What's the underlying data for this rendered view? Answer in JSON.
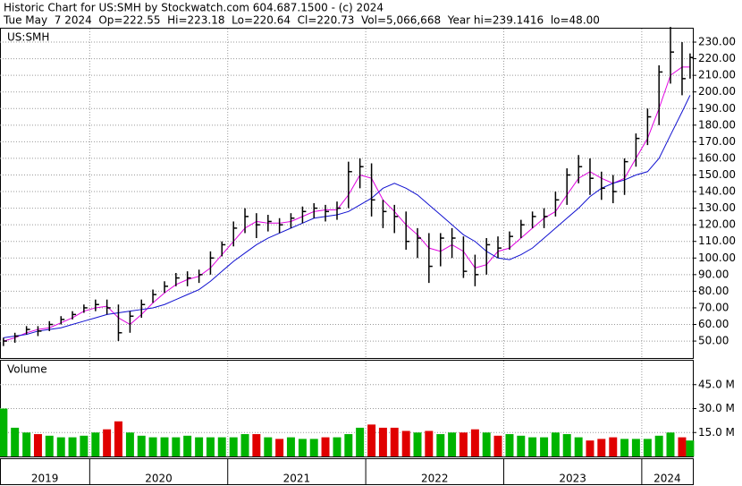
{
  "chart_data": {
    "type": "ohlc",
    "title": "Historic Chart for US:SMH by Stockwatch.com 604.687.1500 - (c) 2024",
    "subtitle": "Tue May  7 2024  Op=222.55  Hi=223.18  Lo=220.64  Cl=220.73  Vol=5,066,668  Year hi=239.1416  lo=48.00",
    "symbol": "US:SMH",
    "volume_label": "Volume",
    "grid": true,
    "bar_color": "#000000",
    "up_color": "#00b400",
    "down_color": "#e00000",
    "xlim": [
      2019.35,
      2024.37
    ],
    "xticks": [
      2019,
      2020,
      2021,
      2022,
      2023,
      2024
    ],
    "ylim": [
      39.8,
      238.1
    ],
    "yticks": [
      {
        "value": 50,
        "label": "50.00"
      },
      {
        "value": 60,
        "label": "60.00"
      },
      {
        "value": 70,
        "label": "70.00"
      },
      {
        "value": 80,
        "label": "80.00"
      },
      {
        "value": 90,
        "label": "90.00"
      },
      {
        "value": 100,
        "label": "100.00"
      },
      {
        "value": 110,
        "label": "110.00"
      },
      {
        "value": 120,
        "label": "120.00"
      },
      {
        "value": 130,
        "label": "130.00"
      },
      {
        "value": 140,
        "label": "140.00"
      },
      {
        "value": 150,
        "label": "150.00"
      },
      {
        "value": 160,
        "label": "160.00"
      },
      {
        "value": 170,
        "label": "170.00"
      },
      {
        "value": 180,
        "label": "180.00"
      },
      {
        "value": 190,
        "label": "190.00"
      },
      {
        "value": 200,
        "label": "200.00"
      },
      {
        "value": 210,
        "label": "210.00"
      },
      {
        "value": 220,
        "label": "220.00"
      },
      {
        "value": 230,
        "label": "230.00"
      }
    ],
    "x": [
      2019.375,
      2019.458,
      2019.542,
      2019.625,
      2019.708,
      2019.792,
      2019.875,
      2019.958,
      2020.042,
      2020.125,
      2020.208,
      2020.292,
      2020.375,
      2020.458,
      2020.542,
      2020.625,
      2020.708,
      2020.792,
      2020.875,
      2020.958,
      2021.042,
      2021.125,
      2021.208,
      2021.292,
      2021.375,
      2021.458,
      2021.542,
      2021.625,
      2021.708,
      2021.792,
      2021.875,
      2021.958,
      2022.042,
      2022.125,
      2022.208,
      2022.292,
      2022.375,
      2022.458,
      2022.542,
      2022.625,
      2022.708,
      2022.792,
      2022.875,
      2022.958,
      2023.042,
      2023.125,
      2023.208,
      2023.292,
      2023.375,
      2023.458,
      2023.542,
      2023.625,
      2023.708,
      2023.792,
      2023.875,
      2023.958,
      2024.042,
      2024.125,
      2024.208,
      2024.292,
      2024.35
    ],
    "high": [
      52,
      55,
      59,
      59,
      62,
      65,
      68,
      72,
      75,
      75,
      72,
      68,
      75,
      81,
      86,
      91,
      92,
      93,
      104,
      110,
      122,
      130,
      127,
      126,
      124,
      127,
      131,
      133,
      132,
      134,
      158,
      160,
      157,
      135,
      132,
      128,
      118,
      115,
      115,
      118,
      113,
      102,
      112,
      113,
      116,
      123,
      128,
      130,
      140,
      154,
      162,
      160,
      152,
      150,
      160,
      175,
      190,
      216,
      239.14,
      230,
      223.18
    ],
    "low": [
      47,
      49,
      54,
      53,
      56,
      60,
      63,
      67,
      68,
      66,
      50,
      55,
      64,
      73,
      79,
      83,
      83,
      85,
      90,
      101,
      107,
      115,
      112,
      116,
      115,
      118,
      121,
      124,
      122,
      123,
      130,
      142,
      125,
      118,
      115,
      105,
      100,
      85,
      95,
      100,
      88,
      83,
      90,
      100,
      105,
      112,
      118,
      118,
      125,
      132,
      145,
      138,
      135,
      133,
      138,
      155,
      168,
      180,
      205,
      198,
      208
    ],
    "close": [
      50,
      53,
      57,
      56,
      60,
      63,
      66,
      70,
      72,
      70,
      55,
      65,
      72,
      78,
      83,
      88,
      88,
      90,
      100,
      108,
      118,
      125,
      120,
      122,
      120,
      124,
      128,
      130,
      128,
      130,
      152,
      155,
      135,
      128,
      125,
      110,
      112,
      95,
      112,
      112,
      92,
      90,
      108,
      106,
      113,
      120,
      125,
      125,
      135,
      150,
      155,
      148,
      142,
      140,
      158,
      172,
      185,
      212,
      224,
      208,
      220.73
    ],
    "ma_fast": {
      "color": "#e000e0",
      "values": [
        50,
        52,
        55,
        57,
        58,
        61,
        64,
        68,
        70,
        71,
        64,
        60,
        66,
        73,
        79,
        84,
        87,
        89,
        94,
        102,
        110,
        118,
        122,
        121,
        121,
        122,
        125,
        128,
        129,
        129,
        138,
        150,
        148,
        135,
        128,
        120,
        114,
        106,
        104,
        108,
        104,
        94,
        96,
        104,
        106,
        112,
        118,
        124,
        128,
        138,
        148,
        152,
        148,
        145,
        148,
        160,
        172,
        190,
        210,
        215,
        215
      ]
    },
    "ma_slow": {
      "color": "#1010d0",
      "values": [
        52,
        53,
        54,
        56,
        57,
        58,
        60,
        62,
        64,
        66,
        67,
        68,
        69,
        70,
        72,
        75,
        78,
        81,
        86,
        92,
        98,
        103,
        108,
        112,
        115,
        118,
        121,
        124,
        125,
        126,
        128,
        132,
        136,
        142,
        145,
        142,
        138,
        132,
        126,
        120,
        114,
        110,
        104,
        100,
        99,
        102,
        106,
        112,
        118,
        124,
        130,
        137,
        142,
        145,
        147,
        150,
        152,
        160,
        174,
        188,
        198
      ]
    },
    "volume": {
      "ylim": [
        0,
        60
      ],
      "yticks": [
        {
          "value": 15,
          "label": "15.0 M"
        },
        {
          "value": 30,
          "label": "30.0 M"
        },
        {
          "value": 45,
          "label": "45.0 M"
        }
      ],
      "values": [
        30,
        18,
        15,
        14,
        13,
        12,
        12,
        13,
        15,
        17,
        22,
        15,
        13,
        12,
        12,
        12,
        13,
        12,
        12,
        12,
        12,
        14,
        14,
        12,
        11,
        12,
        11,
        11,
        12,
        12,
        14,
        18,
        20,
        18,
        18,
        16,
        15,
        16,
        14,
        15,
        15,
        17,
        15,
        13,
        14,
        13,
        12,
        12,
        15,
        14,
        12,
        10,
        11,
        12,
        11,
        11,
        11,
        13,
        15,
        12,
        10
      ]
    }
  }
}
